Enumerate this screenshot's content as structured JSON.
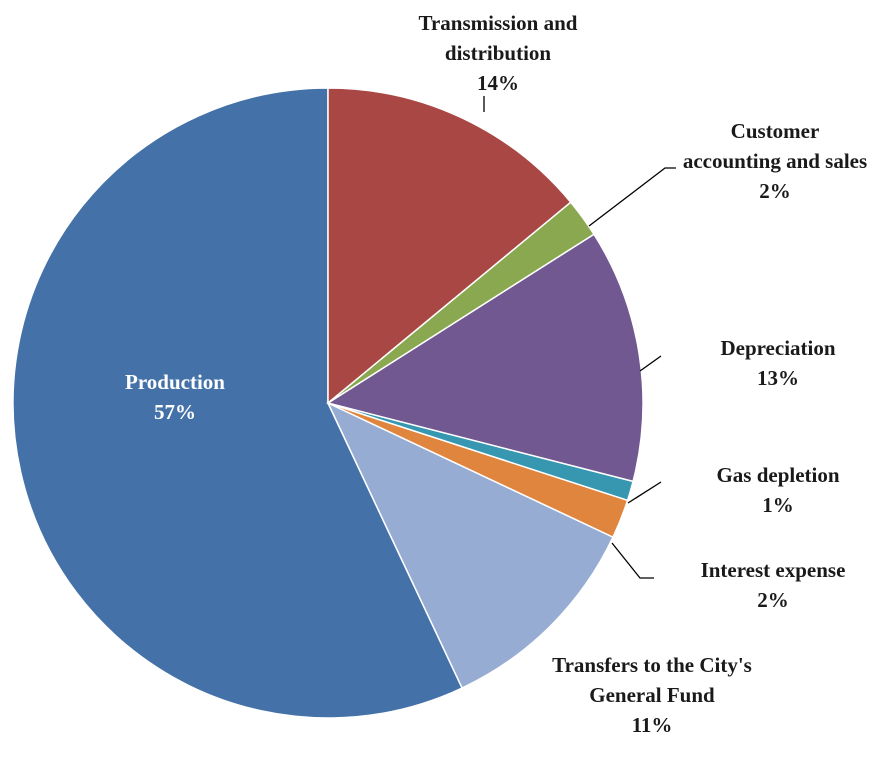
{
  "chart_data": {
    "type": "pie",
    "categories": [
      "Transmission and distribution",
      "Customer accounting and sales",
      "Depreciation",
      "Gas depletion",
      "Interest expense",
      "Transfers to the City's General Fund",
      "Production"
    ],
    "values": [
      14,
      2,
      13,
      1,
      2,
      11,
      57
    ],
    "value_labels": [
      "14%",
      "2%",
      "13%",
      "1%",
      "2%",
      "11%",
      "57%"
    ],
    "colors": [
      "#a94744",
      "#8aa84f",
      "#715890",
      "#3797b0",
      "#e0853e",
      "#97acd2",
      "#4472a8"
    ]
  }
}
